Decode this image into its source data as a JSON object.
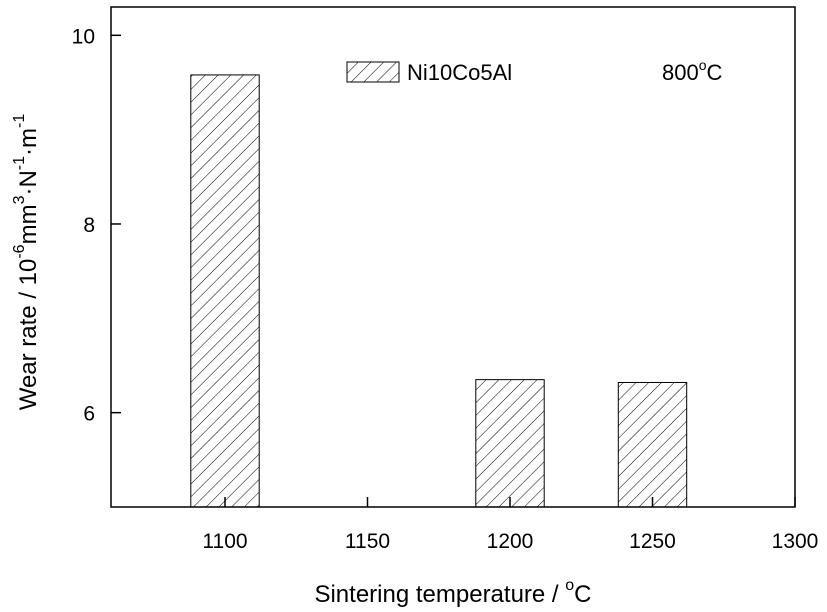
{
  "chart_data": {
    "type": "bar",
    "x_tick_labels": [
      "1100",
      "1150",
      "1200",
      "1250",
      "1300"
    ],
    "x_ticks": [
      1100,
      1150,
      1200,
      1250,
      1300
    ],
    "xlim": [
      1060,
      1300
    ],
    "ylim": [
      5,
      10.3
    ],
    "y_ticks": [
      6,
      8,
      10
    ],
    "y_tick_labels": [
      "6",
      "8",
      "10"
    ],
    "series": [
      {
        "name": "Ni10Co5Al",
        "x": [
          1100,
          1200,
          1250
        ],
        "values": [
          9.58,
          6.35,
          6.32
        ],
        "pattern": "diagonal-hatch"
      }
    ],
    "bar_width": 24,
    "xlabel": "Sintering temperature / ",
    "xlabel_unit": "C",
    "xlabel_degree": "o",
    "ylabel": "Wear rate / 10",
    "ylabel_exp1": "-6",
    "ylabel_mid1": "mm",
    "ylabel_exp2": "3",
    "ylabel_mid2": "·N",
    "ylabel_exp3": "-1",
    "ylabel_mid3": "·m",
    "ylabel_exp4": "-1",
    "annotation_value": "800",
    "annotation_degree": "o",
    "annotation_unit": "C",
    "legend_label": "Ni10Co5Al",
    "legend_position": "top-center",
    "grid": false
  }
}
